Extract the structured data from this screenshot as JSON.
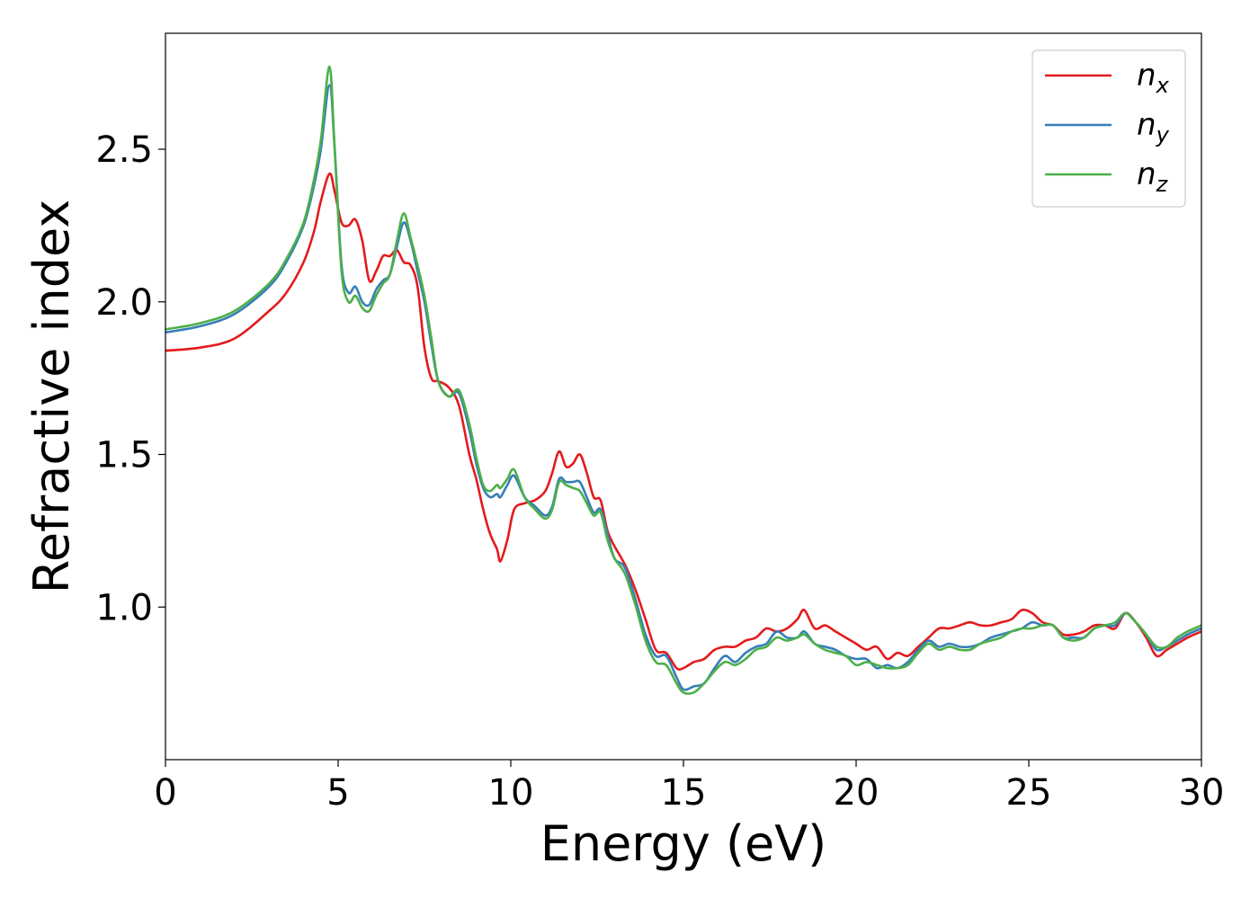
{
  "chart_data": {
    "type": "line",
    "xlabel": "Energy (eV)",
    "ylabel": "Refractive index",
    "xlim": [
      0,
      30
    ],
    "ylim": [
      0.5,
      2.88
    ],
    "grid": false,
    "legend_position": "top-right",
    "xticks": [
      0,
      5,
      10,
      15,
      20,
      25,
      30
    ],
    "xtick_labels": [
      "0",
      "5",
      "10",
      "15",
      "20",
      "25",
      "30"
    ],
    "yticks": [
      1.0,
      1.5,
      2.0,
      2.5
    ],
    "ytick_labels": [
      "1.0",
      "1.5",
      "2.0",
      "2.5"
    ],
    "series": [
      {
        "name": "n",
        "subscript": "x",
        "color": "#e41a1c",
        "x": [
          0,
          1,
          2,
          3,
          3.5,
          4,
          4.3,
          4.5,
          4.75,
          4.9,
          5.1,
          5.3,
          5.5,
          5.7,
          5.9,
          6.1,
          6.3,
          6.5,
          6.7,
          6.9,
          7.1,
          7.3,
          7.5,
          7.7,
          7.9,
          8.2,
          8.5,
          8.8,
          9.0,
          9.2,
          9.4,
          9.6,
          9.7,
          9.9,
          10.1,
          10.4,
          10.7,
          11.0,
          11.2,
          11.4,
          11.6,
          11.8,
          12.0,
          12.2,
          12.4,
          12.6,
          12.8,
          13.0,
          13.3,
          13.6,
          13.9,
          14.2,
          14.5,
          14.8,
          15.0,
          15.3,
          15.6,
          15.9,
          16.2,
          16.5,
          16.8,
          17.1,
          17.4,
          17.7,
          18.0,
          18.3,
          18.5,
          18.8,
          19.1,
          19.4,
          19.7,
          20.0,
          20.3,
          20.6,
          20.9,
          21.2,
          21.5,
          21.8,
          22.1,
          22.4,
          22.7,
          23.0,
          23.3,
          23.6,
          23.9,
          24.2,
          24.5,
          24.8,
          25.1,
          25.4,
          25.7,
          26.0,
          26.3,
          26.6,
          26.9,
          27.2,
          27.5,
          27.8,
          28.1,
          28.4,
          28.7,
          29.0,
          29.3,
          29.6,
          30.0
        ],
        "y": [
          1.84,
          1.85,
          1.88,
          1.97,
          2.03,
          2.13,
          2.23,
          2.33,
          2.42,
          2.36,
          2.26,
          2.25,
          2.27,
          2.2,
          2.07,
          2.1,
          2.15,
          2.15,
          2.17,
          2.13,
          2.12,
          2.05,
          1.85,
          1.75,
          1.74,
          1.72,
          1.66,
          1.5,
          1.42,
          1.32,
          1.24,
          1.19,
          1.15,
          1.22,
          1.32,
          1.34,
          1.35,
          1.38,
          1.44,
          1.51,
          1.46,
          1.47,
          1.5,
          1.44,
          1.36,
          1.35,
          1.25,
          1.2,
          1.14,
          1.06,
          0.96,
          0.86,
          0.85,
          0.8,
          0.8,
          0.82,
          0.83,
          0.86,
          0.87,
          0.87,
          0.89,
          0.9,
          0.93,
          0.92,
          0.93,
          0.96,
          0.99,
          0.93,
          0.94,
          0.92,
          0.9,
          0.88,
          0.86,
          0.87,
          0.83,
          0.85,
          0.84,
          0.87,
          0.9,
          0.93,
          0.93,
          0.94,
          0.95,
          0.94,
          0.94,
          0.95,
          0.96,
          0.99,
          0.98,
          0.95,
          0.94,
          0.91,
          0.91,
          0.92,
          0.94,
          0.94,
          0.93,
          0.98,
          0.95,
          0.9,
          0.84,
          0.86,
          0.88,
          0.9,
          0.92
        ]
      },
      {
        "name": "n",
        "subscript": "y",
        "color": "#377eb8",
        "x": [
          0,
          1,
          2,
          3,
          3.5,
          4,
          4.3,
          4.5,
          4.75,
          4.9,
          5.1,
          5.3,
          5.5,
          5.7,
          5.9,
          6.1,
          6.3,
          6.5,
          6.7,
          6.9,
          7.1,
          7.3,
          7.5,
          7.7,
          7.9,
          8.2,
          8.5,
          8.8,
          9.0,
          9.2,
          9.4,
          9.6,
          9.7,
          9.9,
          10.1,
          10.4,
          10.7,
          11.0,
          11.2,
          11.4,
          11.6,
          11.8,
          12.0,
          12.2,
          12.4,
          12.6,
          12.8,
          13.0,
          13.3,
          13.6,
          13.9,
          14.2,
          14.5,
          14.8,
          15.0,
          15.3,
          15.6,
          15.9,
          16.2,
          16.5,
          16.8,
          17.1,
          17.4,
          17.7,
          18.0,
          18.3,
          18.5,
          18.8,
          19.1,
          19.4,
          19.7,
          20.0,
          20.3,
          20.6,
          20.9,
          21.2,
          21.5,
          21.8,
          22.1,
          22.4,
          22.7,
          23.0,
          23.3,
          23.6,
          23.9,
          24.2,
          24.5,
          24.8,
          25.1,
          25.4,
          25.7,
          26.0,
          26.3,
          26.6,
          26.9,
          27.2,
          27.5,
          27.8,
          28.1,
          28.4,
          28.7,
          29.0,
          29.3,
          29.6,
          30.0
        ],
        "y": [
          1.9,
          1.92,
          1.96,
          2.05,
          2.13,
          2.25,
          2.38,
          2.5,
          2.71,
          2.5,
          2.12,
          2.03,
          2.05,
          2.0,
          1.99,
          2.04,
          2.07,
          2.09,
          2.18,
          2.26,
          2.2,
          2.1,
          2.0,
          1.86,
          1.74,
          1.69,
          1.7,
          1.58,
          1.47,
          1.39,
          1.36,
          1.37,
          1.36,
          1.4,
          1.43,
          1.36,
          1.33,
          1.3,
          1.33,
          1.42,
          1.41,
          1.41,
          1.41,
          1.36,
          1.31,
          1.32,
          1.24,
          1.16,
          1.13,
          1.03,
          0.91,
          0.84,
          0.84,
          0.77,
          0.73,
          0.74,
          0.75,
          0.8,
          0.84,
          0.82,
          0.85,
          0.87,
          0.88,
          0.92,
          0.9,
          0.9,
          0.92,
          0.88,
          0.87,
          0.86,
          0.84,
          0.83,
          0.83,
          0.8,
          0.81,
          0.8,
          0.82,
          0.86,
          0.89,
          0.87,
          0.88,
          0.87,
          0.87,
          0.88,
          0.9,
          0.91,
          0.92,
          0.93,
          0.95,
          0.94,
          0.94,
          0.9,
          0.9,
          0.9,
          0.93,
          0.94,
          0.94,
          0.98,
          0.95,
          0.91,
          0.86,
          0.87,
          0.89,
          0.91,
          0.93
        ]
      },
      {
        "name": "n",
        "subscript": "z",
        "color": "#4daf4a",
        "x": [
          0,
          1,
          2,
          3,
          3.5,
          4,
          4.3,
          4.5,
          4.75,
          4.9,
          5.1,
          5.3,
          5.5,
          5.7,
          5.9,
          6.1,
          6.3,
          6.5,
          6.7,
          6.9,
          7.1,
          7.3,
          7.5,
          7.7,
          7.9,
          8.2,
          8.5,
          8.8,
          9.0,
          9.2,
          9.4,
          9.6,
          9.7,
          9.9,
          10.1,
          10.4,
          10.7,
          11.0,
          11.2,
          11.4,
          11.6,
          11.8,
          12.0,
          12.2,
          12.4,
          12.6,
          12.8,
          13.0,
          13.3,
          13.6,
          13.9,
          14.2,
          14.5,
          14.8,
          15.0,
          15.3,
          15.6,
          15.9,
          16.2,
          16.5,
          16.8,
          17.1,
          17.4,
          17.7,
          18.0,
          18.3,
          18.5,
          18.8,
          19.1,
          19.4,
          19.7,
          20.0,
          20.3,
          20.6,
          20.9,
          21.2,
          21.5,
          21.8,
          22.1,
          22.4,
          22.7,
          23.0,
          23.3,
          23.6,
          23.9,
          24.2,
          24.5,
          24.8,
          25.1,
          25.4,
          25.7,
          26.0,
          26.3,
          26.6,
          26.9,
          27.2,
          27.5,
          27.8,
          28.1,
          28.4,
          28.7,
          29.0,
          29.3,
          29.6,
          30.0
        ],
        "y": [
          1.91,
          1.93,
          1.97,
          2.06,
          2.14,
          2.26,
          2.4,
          2.53,
          2.77,
          2.5,
          2.1,
          2.0,
          2.02,
          1.98,
          1.97,
          2.02,
          2.06,
          2.09,
          2.2,
          2.29,
          2.21,
          2.12,
          2.02,
          1.88,
          1.74,
          1.69,
          1.71,
          1.6,
          1.49,
          1.4,
          1.38,
          1.4,
          1.39,
          1.42,
          1.45,
          1.36,
          1.32,
          1.29,
          1.32,
          1.41,
          1.4,
          1.39,
          1.38,
          1.34,
          1.3,
          1.31,
          1.22,
          1.16,
          1.11,
          1.01,
          0.89,
          0.82,
          0.81,
          0.75,
          0.72,
          0.72,
          0.75,
          0.79,
          0.82,
          0.81,
          0.83,
          0.86,
          0.87,
          0.9,
          0.89,
          0.9,
          0.91,
          0.88,
          0.86,
          0.85,
          0.84,
          0.81,
          0.82,
          0.81,
          0.8,
          0.8,
          0.81,
          0.85,
          0.88,
          0.86,
          0.87,
          0.86,
          0.86,
          0.88,
          0.89,
          0.9,
          0.92,
          0.93,
          0.93,
          0.94,
          0.94,
          0.9,
          0.89,
          0.9,
          0.93,
          0.94,
          0.95,
          0.98,
          0.95,
          0.91,
          0.87,
          0.87,
          0.9,
          0.92,
          0.94
        ]
      }
    ]
  }
}
